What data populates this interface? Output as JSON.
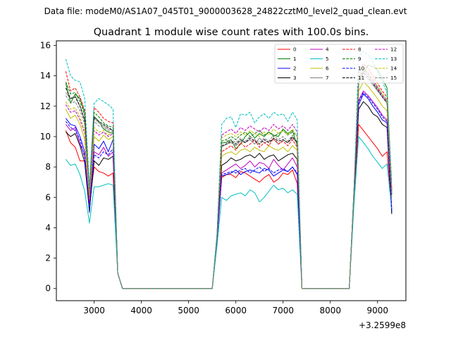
{
  "figure": {
    "suptitle": "Data file: modeM0/AS1A07_045T01_9000003628_24822cztM0_level2_quad_clean.evt",
    "title": "Quadrant 1 module wise count rates with 100.0s bins.",
    "x_offset_label": "+3.2599e8"
  },
  "chart_data": {
    "type": "line",
    "title": "Quadrant 1 module wise count rates with 100.0s bins.",
    "xlabel": "",
    "ylabel": "",
    "x_offset": 325990000,
    "xlim": [
      2200,
      9600
    ],
    "ylim": [
      -0.8,
      16.3
    ],
    "x_ticks": [
      3000,
      4000,
      5000,
      6000,
      7000,
      8000,
      9000
    ],
    "y_ticks": [
      0,
      2,
      4,
      6,
      8,
      10,
      12,
      14,
      16
    ],
    "grid": false,
    "legend": {
      "placement": "top-right",
      "columns": 4
    },
    "segments": [
      [
        2400,
        3500
      ],
      [
        5600,
        7300
      ],
      [
        8500,
        9300
      ]
    ],
    "gap_ranges": [
      [
        3600,
        5500
      ],
      [
        7400,
        8400
      ]
    ],
    "series": [
      {
        "name": "0",
        "color": "#ff0000",
        "dash": "solid",
        "segments": [
          [
            10.4,
            9.6,
            9.3,
            8.4,
            8.4,
            5.6,
            8.0,
            7.7,
            7.6,
            7.4,
            7.6,
            1.0
          ],
          [
            3.1,
            7.3,
            7.5,
            7.5,
            7.3,
            7.7,
            7.6,
            7.4,
            7.2,
            7.0,
            7.3,
            7.5,
            7.0,
            7.2,
            7.6,
            7.5,
            7.8,
            6.9
          ],
          [
            6.0,
            10.8,
            10.4,
            10.0,
            9.6,
            9.2,
            8.7,
            9.0,
            5.3
          ]
        ]
      },
      {
        "name": "1",
        "color": "#008000",
        "dash": "solid",
        "segments": [
          [
            13.5,
            12.2,
            12.8,
            12.5,
            11.6,
            6.4,
            11.3,
            11.0,
            10.5,
            10.3,
            10.2,
            1.0
          ],
          [
            3.4,
            9.6,
            9.6,
            9.8,
            9.2,
            9.5,
            10.0,
            10.3,
            9.9,
            10.2,
            10.0,
            10.3,
            10.1,
            10.0,
            10.5,
            10.2,
            10.4,
            9.4
          ],
          [
            6.4,
            13.7,
            14.2,
            14.7,
            14.6,
            14.4,
            13.8,
            13.2,
            6.5
          ]
        ]
      },
      {
        "name": "2",
        "color": "#0000ff",
        "dash": "solid",
        "segments": [
          [
            11.2,
            10.8,
            10.7,
            10.0,
            9.0,
            5.0,
            9.5,
            9.2,
            9.7,
            9.0,
            9.8,
            1.0
          ],
          [
            3.2,
            7.4,
            7.5,
            7.6,
            7.8,
            7.5,
            7.7,
            7.8,
            7.7,
            7.6,
            7.9,
            7.8,
            7.4,
            7.6,
            7.8,
            7.7,
            8.0,
            7.5
          ],
          [
            6.2,
            12.1,
            12.8,
            12.5,
            12.0,
            11.6,
            11.1,
            10.9,
            5.0
          ]
        ]
      },
      {
        "name": "3",
        "color": "#000000",
        "dash": "solid",
        "segments": [
          [
            10.3,
            10.0,
            10.2,
            9.4,
            8.3,
            5.1,
            8.4,
            8.1,
            8.6,
            8.5,
            8.7,
            1.0
          ],
          [
            3.3,
            8.1,
            8.3,
            8.6,
            8.4,
            8.5,
            8.7,
            8.8,
            8.6,
            8.9,
            8.5,
            8.7,
            8.8,
            8.4,
            8.6,
            8.8,
            8.9,
            8.5
          ],
          [
            6.3,
            11.8,
            12.3,
            12.0,
            11.5,
            11.3,
            10.8,
            10.6,
            4.9
          ]
        ]
      },
      {
        "name": "4",
        "color": "#bf00bf",
        "dash": "solid",
        "segments": [
          [
            10.8,
            10.4,
            10.6,
            9.5,
            8.8,
            5.6,
            9.0,
            8.8,
            9.3,
            8.7,
            9.0,
            1.0
          ],
          [
            3.2,
            7.6,
            7.8,
            8.0,
            8.2,
            7.9,
            8.1,
            8.4,
            8.0,
            8.3,
            8.2,
            7.9,
            8.5,
            8.1,
            7.8,
            8.2,
            8.6,
            8.0
          ],
          [
            6.3,
            12.4,
            13.0,
            12.7,
            12.3,
            11.9,
            11.4,
            11.1,
            5.2
          ]
        ]
      },
      {
        "name": "5",
        "color": "#00bfbf",
        "dash": "solid",
        "segments": [
          [
            8.5,
            8.1,
            8.2,
            7.5,
            6.4,
            4.3,
            6.7,
            6.7,
            6.8,
            6.9,
            6.8,
            1.0
          ],
          [
            2.8,
            6.0,
            5.8,
            6.1,
            6.2,
            6.3,
            6.1,
            6.5,
            6.3,
            5.7,
            6.0,
            6.4,
            6.8,
            6.5,
            6.6,
            6.3,
            6.5,
            6.2
          ],
          [
            5.5,
            10.0,
            9.6,
            9.2,
            8.7,
            8.3,
            7.9,
            8.2,
            5.2
          ]
        ]
      },
      {
        "name": "6",
        "color": "#bfbf00",
        "dash": "solid",
        "segments": [
          [
            11.8,
            11.2,
            11.4,
            10.8,
            9.8,
            5.9,
            10.0,
            9.7,
            10.1,
            9.8,
            10.0,
            1.0
          ],
          [
            3.4,
            8.7,
            8.9,
            9.0,
            8.8,
            9.1,
            9.2,
            9.0,
            9.3,
            9.1,
            9.0,
            9.4,
            9.2,
            9.1,
            9.3,
            9.0,
            9.4,
            9.1
          ],
          [
            6.3,
            13.0,
            13.6,
            13.3,
            12.9,
            12.5,
            12.0,
            11.7,
            6.0
          ]
        ]
      },
      {
        "name": "7",
        "color": "#808080",
        "dash": "solid",
        "segments": [
          [
            12.9,
            12.5,
            12.7,
            12.0,
            11.0,
            6.3,
            11.2,
            10.9,
            10.7,
            10.5,
            10.4,
            1.0
          ],
          [
            3.4,
            9.3,
            9.5,
            9.6,
            9.4,
            9.7,
            9.6,
            9.8,
            9.5,
            9.9,
            9.6,
            9.7,
            9.8,
            9.5,
            9.8,
            9.6,
            9.9,
            9.6
          ],
          [
            6.4,
            13.5,
            14.0,
            13.8,
            13.4,
            13.0,
            12.6,
            12.3,
            6.3
          ]
        ]
      },
      {
        "name": "8",
        "color": "#ff0000",
        "dash": "dashed",
        "segments": [
          [
            14.3,
            13.0,
            13.2,
            12.6,
            11.7,
            6.5,
            11.9,
            11.6,
            11.2,
            11.0,
            10.9,
            1.0
          ],
          [
            3.5,
            9.0,
            9.2,
            9.4,
            9.1,
            9.6,
            9.3,
            9.5,
            9.8,
            9.3,
            9.6,
            9.4,
            9.9,
            9.5,
            9.7,
            9.4,
            9.8,
            9.3
          ],
          [
            6.5,
            14.2,
            14.8,
            14.5,
            14.0,
            13.5,
            13.0,
            12.6,
            6.6
          ]
        ]
      },
      {
        "name": "9",
        "color": "#008000",
        "dash": "dashed",
        "segments": [
          [
            13.6,
            12.8,
            12.9,
            12.3,
            11.4,
            6.1,
            11.6,
            11.3,
            10.9,
            10.7,
            10.6,
            1.0
          ],
          [
            3.5,
            9.7,
            9.8,
            10.0,
            9.8,
            10.1,
            10.3,
            10.0,
            10.2,
            10.4,
            10.1,
            10.3,
            10.0,
            10.2,
            10.4,
            10.1,
            10.3,
            10.0
          ],
          [
            6.5,
            13.9,
            14.5,
            14.2,
            13.8,
            13.3,
            12.8,
            12.4,
            6.4
          ]
        ]
      },
      {
        "name": "10",
        "color": "#0000ff",
        "dash": "dashed",
        "segments": [
          [
            11.0,
            10.6,
            10.4,
            9.8,
            8.6,
            5.2,
            8.8,
            8.6,
            9.0,
            8.8,
            9.2,
            1.0
          ],
          [
            3.2,
            7.5,
            7.6,
            7.7,
            7.6,
            7.8,
            7.9,
            7.6,
            7.8,
            8.0,
            7.7,
            7.9,
            7.6,
            7.8,
            7.9,
            7.7,
            8.0,
            7.6
          ],
          [
            6.2,
            12.3,
            12.9,
            12.6,
            12.2,
            11.8,
            11.3,
            11.0,
            5.1
          ]
        ]
      },
      {
        "name": "11",
        "color": "#000000",
        "dash": "dashed",
        "segments": [
          [
            13.2,
            12.5,
            12.6,
            12.0,
            11.1,
            6.2,
            11.3,
            11.0,
            10.8,
            10.6,
            10.4,
            1.0
          ],
          [
            3.4,
            9.4,
            9.5,
            9.7,
            9.5,
            9.8,
            9.6,
            9.9,
            9.7,
            9.5,
            9.8,
            9.6,
            9.9,
            9.7,
            9.8,
            9.6,
            10.0,
            9.6
          ],
          [
            6.4,
            13.6,
            14.2,
            13.9,
            13.5,
            13.1,
            12.6,
            12.2,
            6.2
          ]
        ]
      },
      {
        "name": "12",
        "color": "#bf00bf",
        "dash": "dashed",
        "segments": [
          [
            12.1,
            11.6,
            11.7,
            11.1,
            10.2,
            6.0,
            10.4,
            10.1,
            10.3,
            10.0,
            10.2,
            1.0
          ],
          [
            3.4,
            10.1,
            10.3,
            10.5,
            10.2,
            10.6,
            10.4,
            10.7,
            10.5,
            10.3,
            10.6,
            10.4,
            10.8,
            10.5,
            10.7,
            10.4,
            10.8,
            10.3
          ],
          [
            6.4,
            13.8,
            14.4,
            14.1,
            13.7,
            13.2,
            12.7,
            12.3,
            6.2
          ]
        ]
      },
      {
        "name": "13",
        "color": "#00bfbf",
        "dash": "dashed",
        "segments": [
          [
            15.1,
            14.0,
            13.7,
            13.6,
            12.5,
            6.7,
            12.2,
            12.5,
            12.3,
            12.1,
            11.8,
            1.0
          ],
          [
            3.6,
            10.8,
            11.2,
            11.3,
            10.6,
            11.5,
            11.4,
            11.6,
            10.9,
            11.3,
            11.5,
            11.2,
            11.6,
            11.4,
            11.5,
            11.0,
            11.6,
            11.1
          ],
          [
            6.6,
            15.3,
            15.6,
            15.4,
            14.9,
            14.3,
            13.6,
            12.9,
            7.0
          ]
        ]
      },
      {
        "name": "14",
        "color": "#bfbf00",
        "dash": "dashed",
        "segments": [
          [
            12.3,
            11.8,
            11.9,
            11.3,
            10.4,
            6.1,
            10.6,
            10.3,
            10.4,
            10.1,
            10.3,
            1.0
          ],
          [
            3.4,
            9.9,
            10.1,
            10.2,
            10.0,
            10.3,
            10.1,
            10.4,
            10.2,
            10.0,
            10.3,
            10.1,
            10.5,
            10.2,
            10.4,
            10.1,
            10.5,
            10.0
          ],
          [
            6.4,
            13.9,
            14.5,
            14.2,
            13.8,
            13.3,
            12.8,
            12.4,
            6.3
          ]
        ]
      },
      {
        "name": "15",
        "color": "#808080",
        "dash": "dashed",
        "segments": [
          [
            12.7,
            12.2,
            12.3,
            11.7,
            10.8,
            6.2,
            11.0,
            10.7,
            10.6,
            10.4,
            10.3,
            1.0
          ],
          [
            3.4,
            9.5,
            9.7,
            9.8,
            9.6,
            9.9,
            9.7,
            10.0,
            9.8,
            9.6,
            9.9,
            9.7,
            10.1,
            9.8,
            10.0,
            9.7,
            10.1,
            9.7
          ],
          [
            6.4,
            13.7,
            14.3,
            14.0,
            13.6,
            13.1,
            12.6,
            12.2,
            6.3
          ]
        ]
      }
    ]
  }
}
